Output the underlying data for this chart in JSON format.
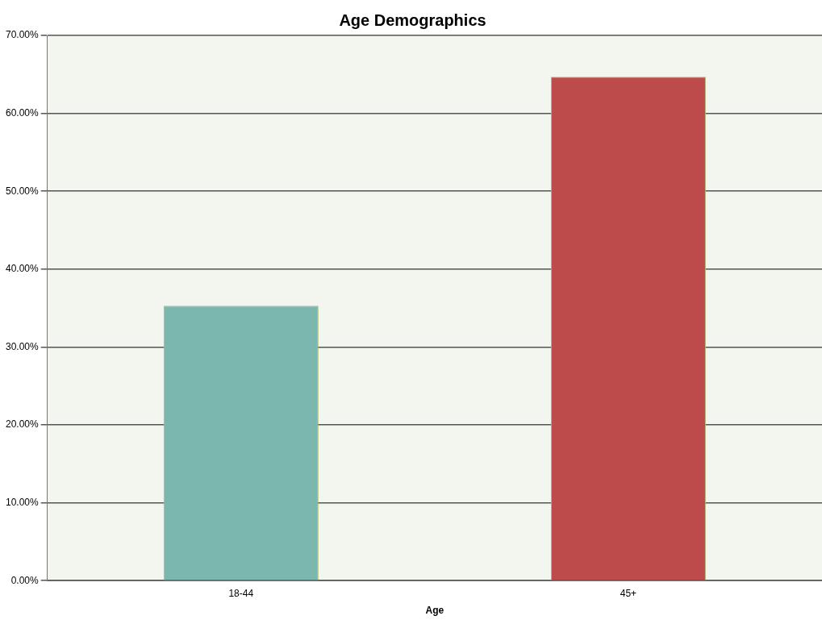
{
  "chart_data": {
    "type": "bar",
    "title": "Age Demographics",
    "xlabel": "Age",
    "categories": [
      "18-44",
      "45+"
    ],
    "values": [
      35.3,
      64.7
    ],
    "colors": [
      "#7bb7af",
      "#bd4b4b"
    ],
    "ylim": [
      0,
      70
    ],
    "yticks": [
      {
        "value": 0,
        "label": "0.00%"
      },
      {
        "value": 10,
        "label": "10.00%"
      },
      {
        "value": 20,
        "label": "20.00%"
      },
      {
        "value": 30,
        "label": "30.00%"
      },
      {
        "value": 40,
        "label": "40.00%"
      },
      {
        "value": 50,
        "label": "50.00%"
      },
      {
        "value": 60,
        "label": "60.00%"
      },
      {
        "value": 70,
        "label": "70.00%"
      }
    ],
    "grid": "y",
    "legend": false
  }
}
